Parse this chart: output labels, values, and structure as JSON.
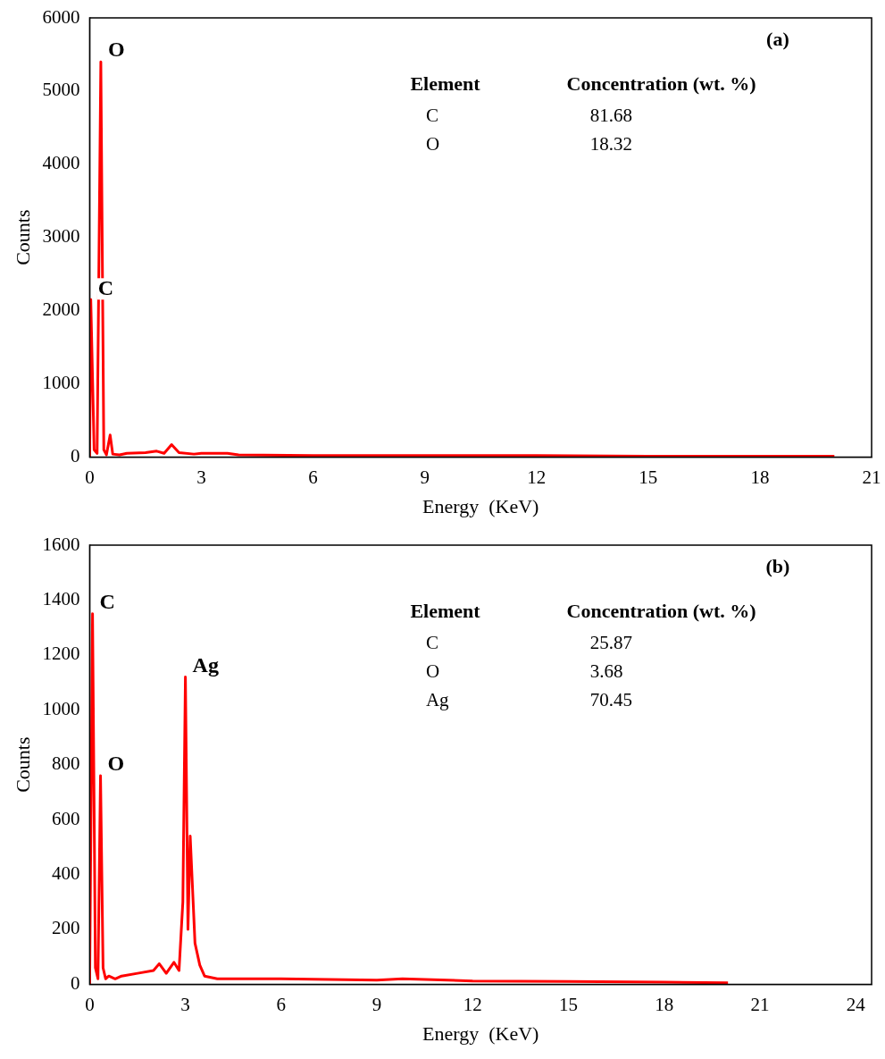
{
  "chart_data": [
    {
      "type": "line",
      "xlabel": "Energy  (KeV)",
      "ylabel": "Counts",
      "xlim": [
        0,
        21
      ],
      "xticks": [
        0,
        3,
        6,
        9,
        12,
        15,
        18,
        21
      ],
      "ylim": [
        0,
        6000
      ],
      "yticks": [
        0,
        1000,
        2000,
        3000,
        4000,
        5000,
        6000
      ],
      "grid": false,
      "legend": false,
      "marker": "none",
      "series": [
        {
          "color": "#ff0000",
          "x": [
            0,
            0.03,
            0.12,
            0.2,
            0.3,
            0.38,
            0.45,
            0.55,
            0.62,
            0.8,
            1.0,
            1.5,
            1.8,
            2.0,
            2.2,
            2.4,
            2.8,
            3.0,
            3.7,
            4,
            6,
            9,
            9.8,
            12,
            15,
            18,
            20
          ],
          "values": [
            0,
            2150,
            100,
            50,
            5400,
            100,
            30,
            300,
            40,
            30,
            50,
            60,
            80,
            50,
            170,
            60,
            40,
            50,
            50,
            30,
            20,
            20,
            20,
            20,
            10,
            10,
            10
          ]
        }
      ],
      "annotations": [
        "(a)",
        "Element",
        "Concentration (wt. %)",
        "C",
        "81.68",
        "O",
        "18.32",
        {
          "text": "O",
          "x": 0.3,
          "y": 5400
        },
        {
          "text": "C",
          "x": 0.03,
          "y": 2150
        }
      ]
    },
    {
      "type": "line",
      "xlabel": "Energy  (KeV)",
      "ylabel": "Counts",
      "xlim": [
        0,
        24.5
      ],
      "xticks": [
        0,
        3,
        6,
        9,
        12,
        15,
        18,
        21,
        24
      ],
      "ylim": [
        0,
        1600
      ],
      "yticks": [
        0,
        200,
        400,
        600,
        800,
        1000,
        1200,
        1400,
        1600
      ],
      "grid": false,
      "legend": false,
      "marker": "none",
      "series": [
        {
          "color": "#ff0000",
          "x": [
            0,
            0.09,
            0.18,
            0.26,
            0.34,
            0.42,
            0.5,
            0.6,
            0.8,
            1.0,
            1.5,
            2.0,
            2.18,
            2.4,
            2.64,
            2.8,
            2.92,
            3.0,
            3.08,
            3.15,
            3.3,
            3.45,
            3.6,
            4,
            5,
            6,
            9,
            9.8,
            12,
            15,
            18,
            20
          ],
          "values": [
            0,
            1350,
            60,
            20,
            760,
            60,
            20,
            30,
            20,
            30,
            40,
            50,
            75,
            40,
            80,
            50,
            300,
            1120,
            200,
            540,
            150,
            70,
            30,
            20,
            20,
            20,
            15,
            20,
            12,
            10,
            8,
            5
          ]
        }
      ],
      "annotations": [
        "(b)",
        "Element",
        "Concentration (wt. %)",
        "C",
        "25.87",
        "O",
        "3.68",
        "Ag",
        "70.45",
        {
          "text": "C",
          "x": 0.09,
          "y": 1350
        },
        {
          "text": "O",
          "x": 0.34,
          "y": 760
        },
        {
          "text": "Ag",
          "x": 3.0,
          "y": 1120
        }
      ]
    }
  ]
}
